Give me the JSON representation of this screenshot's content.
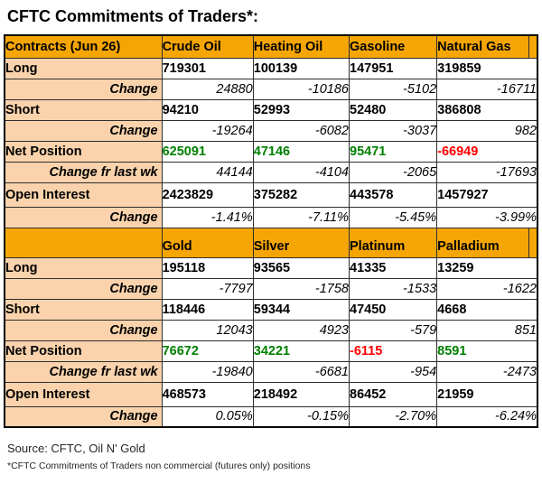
{
  "title": "CFTC Commitments of Traders*:",
  "colors": {
    "header_bg": "#F6A604",
    "label_bg": "#FAD3AC",
    "positive": "#008000",
    "negative": "#FF0000"
  },
  "sections": [
    {
      "header": {
        "label": "Contracts (Jun 26)",
        "columns": [
          "Crude Oil",
          "Heating Oil",
          "Gasoline",
          "Natural Gas"
        ]
      },
      "rows": [
        {
          "label": "Long",
          "type": "value",
          "values": [
            "719301",
            "100139",
            "147951",
            "319859"
          ]
        },
        {
          "label": "Change",
          "type": "change",
          "values": [
            "24880",
            "-10186",
            "-5102",
            "-16711"
          ]
        },
        {
          "label": "Short",
          "type": "value",
          "values": [
            "94210",
            "52993",
            "52480",
            "386808"
          ]
        },
        {
          "label": "Change",
          "type": "change",
          "values": [
            "-19264",
            "-6082",
            "-3037",
            "982"
          ]
        },
        {
          "label": "Net Position",
          "type": "net",
          "values": [
            "625091",
            "47146",
            "95471",
            "-66949"
          ]
        },
        {
          "label": "Change fr last wk",
          "type": "change",
          "values": [
            "44144",
            "-4104",
            "-2065",
            "-17693"
          ]
        },
        {
          "label": "Open Interest",
          "type": "value",
          "values": [
            "2423829",
            "375282",
            "443578",
            "1457927"
          ]
        },
        {
          "label": "Change",
          "type": "change",
          "values": [
            "-1.41%",
            "-7.11%",
            "-5.45%",
            "-3.99%"
          ]
        }
      ]
    },
    {
      "header": {
        "label": "",
        "columns": [
          "Gold",
          "Silver",
          "Platinum",
          "Palladium"
        ]
      },
      "rows": [
        {
          "label": "Long",
          "type": "value",
          "values": [
            "195118",
            "93565",
            "41335",
            "13259"
          ]
        },
        {
          "label": "Change",
          "type": "change",
          "values": [
            "-7797",
            "-1758",
            "-1533",
            "-1622"
          ]
        },
        {
          "label": "Short",
          "type": "value",
          "values": [
            "118446",
            "59344",
            "47450",
            "4668"
          ]
        },
        {
          "label": "Change",
          "type": "change",
          "values": [
            "12043",
            "4923",
            "-579",
            "851"
          ]
        },
        {
          "label": "Net Position",
          "type": "net",
          "values": [
            "76672",
            "34221",
            "-6115",
            "8591"
          ]
        },
        {
          "label": "Change fr last wk",
          "type": "change",
          "values": [
            "-19840",
            "-6681",
            "-954",
            "-2473"
          ]
        },
        {
          "label": "Open Interest",
          "type": "value",
          "values": [
            "468573",
            "218492",
            "86452",
            "21959"
          ]
        },
        {
          "label": "Change",
          "type": "change",
          "values": [
            "0.05%",
            "-0.15%",
            "-2.70%",
            "-6.24%"
          ]
        }
      ]
    }
  ],
  "footer": {
    "source": "Source: CFTC, Oil N' Gold",
    "note": "*CFTC Commitments of Traders non commercial (futures only) positions"
  }
}
